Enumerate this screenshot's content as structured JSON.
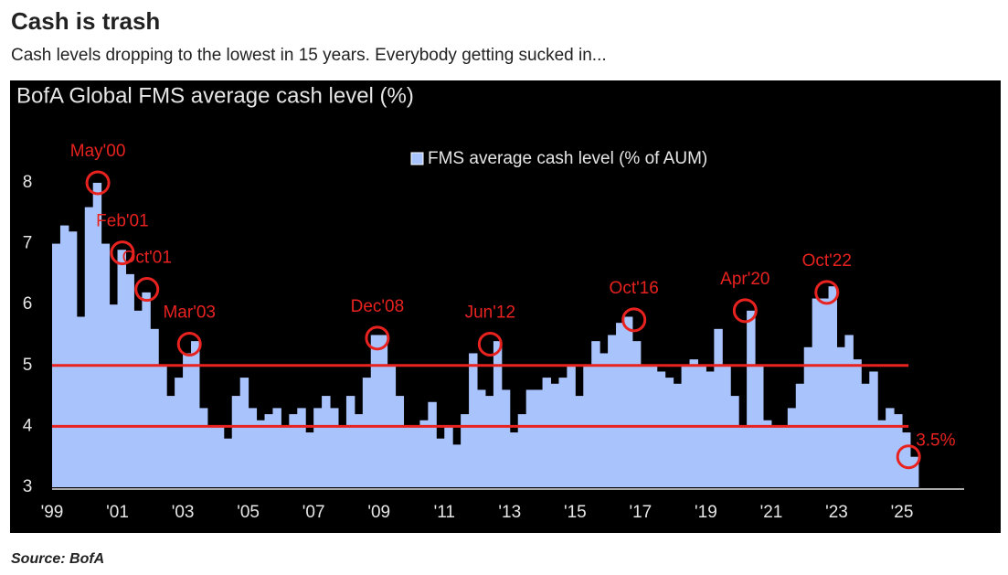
{
  "header": {
    "title": "Cash is trash",
    "subtitle": "Cash levels dropping to the lowest in 15 years. Everybody getting sucked in..."
  },
  "chart_data": {
    "type": "bar",
    "title": "BofA Global FMS average cash level (%)",
    "series": [
      {
        "name": "FMS average cash level (% of AUM)",
        "color": "#a9c4fd",
        "values": [
          7.0,
          7.3,
          7.2,
          5.8,
          7.6,
          8.0,
          7.0,
          6.0,
          6.9,
          6.5,
          5.9,
          6.2,
          5.6,
          5.0,
          4.5,
          4.8,
          5.2,
          5.4,
          4.3,
          4.0,
          4.0,
          3.8,
          4.5,
          4.8,
          4.3,
          4.1,
          4.2,
          4.3,
          4.0,
          4.2,
          4.3,
          3.9,
          4.3,
          4.5,
          4.3,
          4.0,
          4.5,
          4.2,
          4.8,
          5.5,
          5.5,
          5.0,
          4.5,
          4.0,
          4.0,
          4.1,
          4.4,
          3.8,
          4.0,
          3.7,
          4.2,
          5.2,
          4.6,
          4.5,
          5.4,
          4.6,
          3.9,
          4.2,
          4.6,
          4.6,
          4.8,
          4.7,
          4.8,
          5.0,
          4.5,
          5.0,
          5.4,
          5.2,
          5.5,
          5.7,
          5.8,
          5.4,
          5.0,
          5.0,
          4.9,
          4.8,
          4.7,
          5.0,
          5.1,
          5.0,
          4.9,
          5.6,
          5.0,
          4.5,
          4.0,
          5.9,
          5.0,
          4.1,
          4.0,
          4.0,
          4.3,
          4.7,
          5.3,
          6.1,
          6.1,
          6.3,
          5.3,
          5.5,
          5.1,
          4.7,
          4.9,
          4.1,
          4.3,
          4.2,
          3.9,
          3.5
        ]
      }
    ],
    "x": [
      1999,
      1999.25,
      1999.5,
      1999.75,
      2000,
      2000.25,
      2000.5,
      2000.75,
      2001,
      2001.25,
      2001.5,
      2001.75,
      2002,
      2002.25,
      2002.5,
      2002.75,
      2003,
      2003.25,
      2003.5,
      2003.75,
      2004,
      2004.25,
      2004.5,
      2004.75,
      2005,
      2005.25,
      2005.5,
      2005.75,
      2006,
      2006.25,
      2006.5,
      2006.75,
      2007,
      2007.25,
      2007.5,
      2007.75,
      2008,
      2008.25,
      2008.5,
      2008.75,
      2009,
      2009.25,
      2009.5,
      2009.75,
      2010,
      2010.25,
      2010.5,
      2010.75,
      2011,
      2011.25,
      2011.5,
      2011.75,
      2012,
      2012.25,
      2012.5,
      2012.75,
      2013,
      2013.25,
      2013.5,
      2013.75,
      2014,
      2014.25,
      2014.5,
      2014.75,
      2015,
      2015.25,
      2015.5,
      2015.75,
      2016,
      2016.25,
      2016.5,
      2016.75,
      2017,
      2017.25,
      2017.5,
      2017.75,
      2018,
      2018.25,
      2018.5,
      2018.75,
      2019,
      2019.25,
      2019.5,
      2019.75,
      2020,
      2020.25,
      2020.5,
      2020.75,
      2021,
      2021.25,
      2021.5,
      2021.75,
      2022,
      2022.25,
      2022.5,
      2022.75,
      2023,
      2023.25,
      2023.5,
      2023.75,
      2024,
      2024.25,
      2024.5,
      2024.75,
      2025,
      2025.25
    ],
    "xlim": [
      1999,
      2026.9
    ],
    "ylim": [
      3,
      8.6
    ],
    "xticks": [
      {
        "value": 1999,
        "label": "'99"
      },
      {
        "value": 2001,
        "label": "'01"
      },
      {
        "value": 2003,
        "label": "'03"
      },
      {
        "value": 2005,
        "label": "'05"
      },
      {
        "value": 2007,
        "label": "'07"
      },
      {
        "value": 2009,
        "label": "'09"
      },
      {
        "value": 2011,
        "label": "'11"
      },
      {
        "value": 2013,
        "label": "'13"
      },
      {
        "value": 2015,
        "label": "'15"
      },
      {
        "value": 2017,
        "label": "'17"
      },
      {
        "value": 2019,
        "label": "'19"
      },
      {
        "value": 2021,
        "label": "'21"
      },
      {
        "value": 2023,
        "label": "'23"
      },
      {
        "value": 2025,
        "label": "'25"
      }
    ],
    "yticks": [
      3,
      4,
      5,
      6,
      7,
      8
    ],
    "hlines": [
      5,
      4
    ],
    "annotation_color": "#e8221f",
    "annotations": [
      {
        "text": "May'00",
        "x": 2000.4,
        "y": 8.0
      },
      {
        "text": "Feb'01",
        "x": 2001.15,
        "y": 6.85
      },
      {
        "text": "Oct'01",
        "x": 2001.9,
        "y": 6.25
      },
      {
        "text": "Mar'03",
        "x": 2003.2,
        "y": 5.35
      },
      {
        "text": "Dec'08",
        "x": 2008.95,
        "y": 5.45
      },
      {
        "text": "Jun'12",
        "x": 2012.4,
        "y": 5.35
      },
      {
        "text": "Oct'16",
        "x": 2016.8,
        "y": 5.75
      },
      {
        "text": "Apr'20",
        "x": 2020.2,
        "y": 5.9
      },
      {
        "text": "Oct'22",
        "x": 2022.7,
        "y": 6.2
      },
      {
        "text": "3.5%",
        "x": 2025.2,
        "y": 3.5
      }
    ],
    "source": "Source: BofA"
  }
}
